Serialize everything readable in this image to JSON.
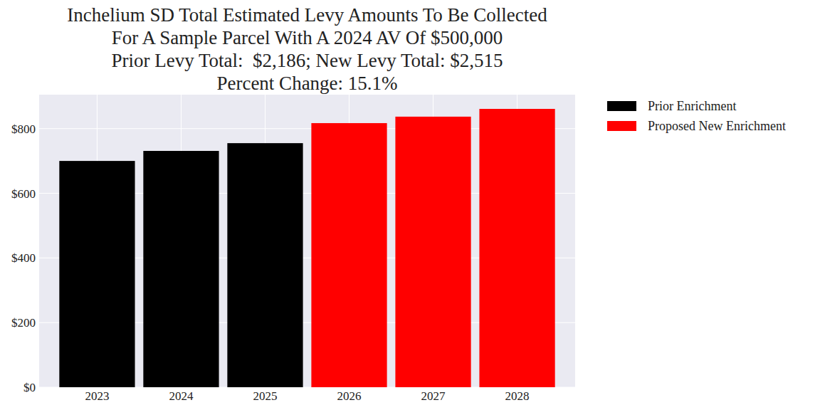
{
  "chart_data": {
    "type": "bar",
    "title": [
      "Inchelium SD Total Estimated Levy Amounts To Be Collected",
      "For A Sample Parcel With A 2024 AV Of $500,000",
      "Prior Levy Total:  $2,186; New Levy Total: $2,515",
      "Percent Change: 15.1%"
    ],
    "categories": [
      "2023",
      "2024",
      "2025",
      "2026",
      "2027",
      "2028"
    ],
    "series": [
      {
        "name": "Prior Enrichment",
        "color": "#000000",
        "values": [
          700,
          731,
          755,
          null,
          null,
          null
        ]
      },
      {
        "name": "Proposed New Enrichment",
        "color": "#ff0000",
        "values": [
          null,
          null,
          null,
          817,
          837,
          861
        ]
      }
    ],
    "ylim": [
      0,
      905
    ],
    "yticks": [
      {
        "value": 0,
        "label": "$0"
      },
      {
        "value": 200,
        "label": "$200"
      },
      {
        "value": 400,
        "label": "$400"
      },
      {
        "value": 600,
        "label": "$600"
      },
      {
        "value": 800,
        "label": "$800"
      }
    ],
    "grid": true,
    "legend": "right"
  }
}
